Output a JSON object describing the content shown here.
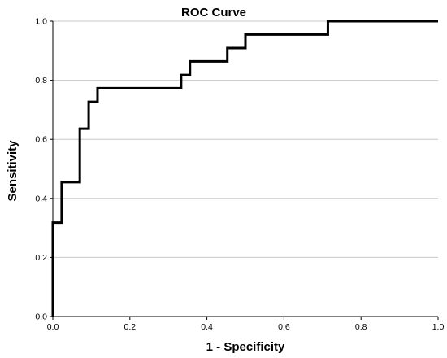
{
  "chart_data": {
    "type": "line",
    "title": "ROC Curve",
    "xlabel": "1 - Specificity",
    "ylabel": "Sensitivity",
    "xlim": [
      0,
      1
    ],
    "ylim": [
      0,
      1
    ],
    "xticks": [
      "0.0",
      "0.2",
      "0.4",
      "0.6",
      "0.8",
      "1.0"
    ],
    "yticks": [
      "0.0",
      "0.2",
      "0.4",
      "0.6",
      "0.8",
      "1.0"
    ],
    "grid": "horizontal",
    "series": [
      {
        "color": "#000000",
        "x": [
          0.0,
          0.0,
          0.023,
          0.023,
          0.07,
          0.07,
          0.093,
          0.093,
          0.116,
          0.116,
          0.333,
          0.333,
          0.356,
          0.356,
          0.453,
          0.453,
          0.5,
          0.5,
          0.714,
          0.714,
          1.0
        ],
        "y": [
          0.0,
          0.318,
          0.318,
          0.455,
          0.455,
          0.636,
          0.636,
          0.727,
          0.727,
          0.773,
          0.773,
          0.818,
          0.818,
          0.864,
          0.864,
          0.909,
          0.909,
          0.955,
          0.955,
          1.0,
          1.0
        ]
      }
    ]
  }
}
